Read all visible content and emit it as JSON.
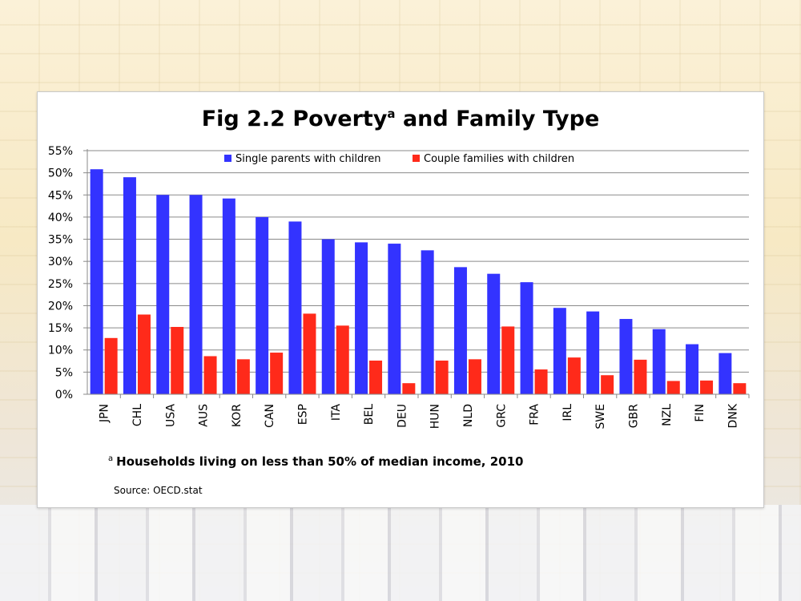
{
  "chart_data": {
    "type": "bar",
    "title": "Fig 2.2 Poverty",
    "title_superscript": "a",
    "title_suffix": " and Family Type",
    "categories": [
      "JPN",
      "CHL",
      "USA",
      "AUS",
      "KOR",
      "CAN",
      "ESP",
      "ITA",
      "BEL",
      "DEU",
      "HUN",
      "NLD",
      "GRC",
      "FRA",
      "IRL",
      "SWE",
      "GBR",
      "NZL",
      "FIN",
      "DNK"
    ],
    "series": [
      {
        "name": "Single parents with children",
        "color": "#3333ff",
        "values": [
          50.8,
          49.0,
          45.0,
          45.0,
          44.2,
          40.0,
          39.0,
          35.0,
          34.3,
          34.0,
          32.5,
          28.7,
          27.2,
          25.3,
          19.5,
          18.7,
          17.0,
          14.7,
          11.3,
          9.3
        ]
      },
      {
        "name": "Couple families with children",
        "color": "#ff2a1a",
        "values": [
          12.7,
          18.0,
          15.2,
          8.6,
          7.9,
          9.4,
          18.2,
          15.5,
          7.6,
          2.5,
          7.6,
          7.9,
          15.3,
          5.6,
          8.3,
          4.3,
          7.8,
          3.0,
          3.1,
          2.5
        ]
      }
    ],
    "yticks": [
      "0%",
      "5%",
      "10%",
      "15%",
      "20%",
      "25%",
      "30%",
      "35%",
      "40%",
      "45%",
      "50%",
      "55%"
    ],
    "ylim": [
      0,
      55
    ],
    "grid": true,
    "legend_position": "top-center"
  },
  "footnote": {
    "marker": "a",
    "text": "Households living on less than 50% of median income, 2010"
  },
  "source": "Source: OECD.stat"
}
